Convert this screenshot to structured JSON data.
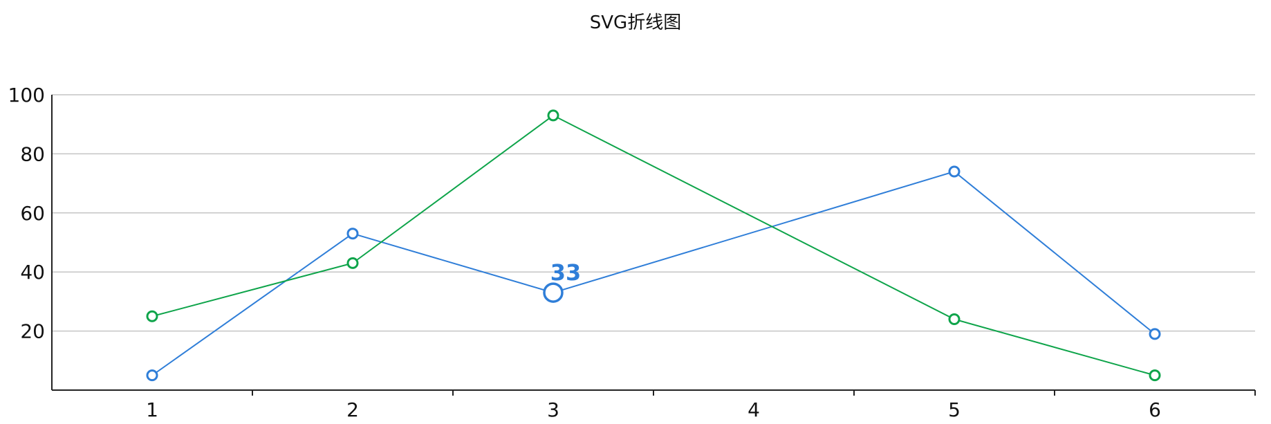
{
  "chart_data": {
    "type": "line",
    "title": "SVG折线图",
    "categories": [
      "1",
      "2",
      "3",
      "4",
      "5",
      "6"
    ],
    "x": [
      1,
      2,
      3,
      4,
      5,
      6
    ],
    "xticks": [
      1,
      2,
      3,
      4,
      5,
      6
    ],
    "yticks": [
      20,
      40,
      60,
      80,
      100
    ],
    "ylim": [
      0,
      100
    ],
    "xlim": [
      0.5,
      6.5
    ],
    "grid": true,
    "series": [
      {
        "color": "#2f7ed8",
        "points": [
          [
            1,
            5
          ],
          [
            2,
            53
          ],
          [
            3,
            33
          ],
          [
            5,
            74
          ],
          [
            6,
            19
          ]
        ]
      },
      {
        "color": "#0ea44a",
        "points": [
          [
            1,
            25
          ],
          [
            2,
            43
          ],
          [
            3,
            93
          ],
          [
            5,
            24
          ],
          [
            6,
            5
          ]
        ]
      }
    ],
    "highlight": {
      "series": 0,
      "x": 3,
      "y": 33,
      "label": "33"
    }
  }
}
